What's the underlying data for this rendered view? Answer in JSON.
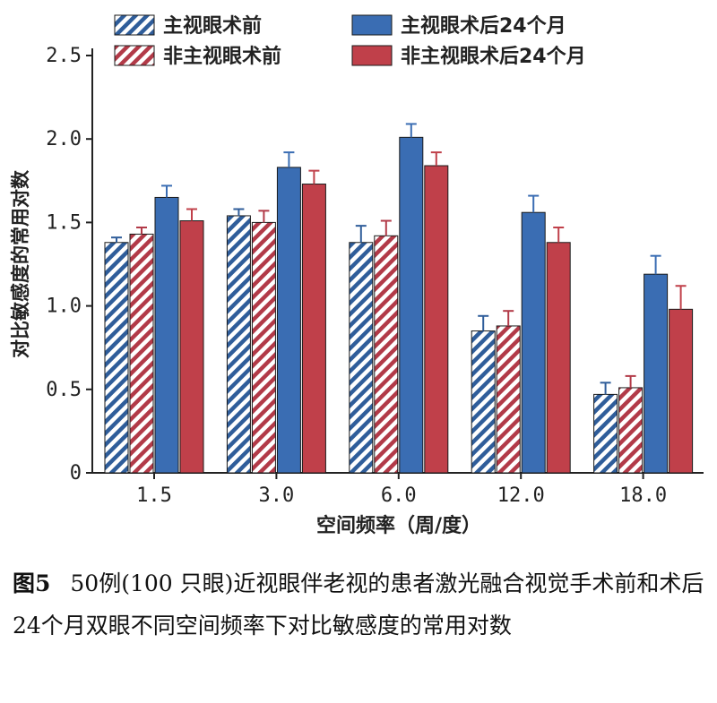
{
  "chart_data": {
    "type": "bar",
    "ylabel": "对比敏感度的常用对数",
    "xlabel": "空间频率（周/度）",
    "categories": [
      "1.5",
      "3.0",
      "6.0",
      "12.0",
      "18.0"
    ],
    "ylim": [
      0,
      2.5
    ],
    "yticks": [
      "0",
      "0.5",
      "1.0",
      "1.5",
      "2.0",
      "2.5"
    ],
    "grid": false,
    "legend": "top",
    "series": [
      {
        "name": "主视眼术前",
        "color": "#2f5d9a",
        "pattern": "hatched",
        "values": [
          1.38,
          1.54,
          1.38,
          0.85,
          0.47
        ],
        "errors": [
          0.03,
          0.04,
          0.1,
          0.09,
          0.07
        ]
      },
      {
        "name": "非主视眼术前",
        "color": "#b23a48",
        "pattern": "hatched",
        "values": [
          1.43,
          1.5,
          1.42,
          0.88,
          0.51
        ],
        "errors": [
          0.04,
          0.07,
          0.09,
          0.09,
          0.07
        ]
      },
      {
        "name": "主视眼术后24个月",
        "color": "#3a6db3",
        "pattern": "solid",
        "values": [
          1.65,
          1.83,
          2.01,
          1.56,
          1.19
        ],
        "errors": [
          0.07,
          0.09,
          0.08,
          0.1,
          0.11
        ]
      },
      {
        "name": "非主视眼术后24个月",
        "color": "#c0404a",
        "pattern": "solid",
        "values": [
          1.51,
          1.73,
          1.84,
          1.38,
          0.98
        ],
        "errors": [
          0.07,
          0.08,
          0.08,
          0.09,
          0.14
        ]
      }
    ]
  },
  "caption": {
    "label": "图5",
    "text": "50例(100 只眼)近视眼伴老视的患者激光融合视觉手术前和术后24个月双眼不同空间频率下对比敏感度的常用对数"
  }
}
